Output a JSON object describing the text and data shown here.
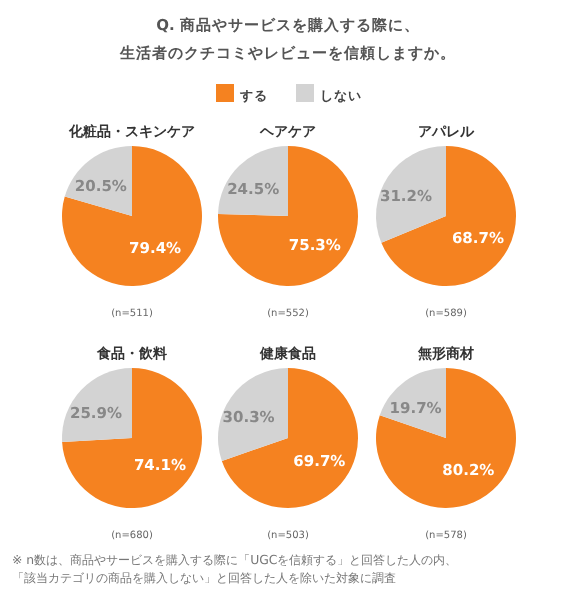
{
  "chart_data": [
    {
      "type": "pie",
      "title": "化粧品・スキンケア",
      "categories": [
        "する",
        "しない"
      ],
      "values": [
        79.4,
        20.5
      ],
      "colors": [
        "#f58220",
        "#d3d3d3"
      ],
      "value_labels": [
        "79.4%",
        "20.5%"
      ],
      "legend": "top",
      "annotations": [
        "Q. 商品やサービスを購入する際に、",
        "生活者のクチコミやレビューを信頼しますか。",
        "(n=511)"
      ]
    },
    {
      "type": "pie",
      "title": "ヘアケア",
      "values": [
        75.3,
        24.5
      ],
      "colors": [
        "#f58220",
        "#d3d3d3"
      ],
      "value_labels": [
        "75.3%",
        "24.5%"
      ],
      "annotations": [
        "(n=552)"
      ]
    },
    {
      "type": "pie",
      "title": "アパレル",
      "values": [
        68.7,
        31.2
      ],
      "colors": [
        "#f58220",
        "#d3d3d3"
      ],
      "value_labels": [
        "68.7%",
        "31.2%"
      ],
      "annotations": [
        "(n=589)"
      ]
    },
    {
      "type": "pie",
      "title": "食品・飲料",
      "values": [
        74.1,
        25.9
      ],
      "colors": [
        "#f58220",
        "#d3d3d3"
      ],
      "value_labels": [
        "74.1%",
        "25.9%"
      ],
      "annotations": [
        "(n=680)"
      ]
    },
    {
      "type": "pie",
      "title": "健康食品",
      "values": [
        69.7,
        30.3
      ],
      "colors": [
        "#f58220",
        "#d3d3d3"
      ],
      "value_labels": [
        "69.7%",
        "30.3%"
      ],
      "annotations": [
        "(n=503)"
      ]
    },
    {
      "type": "pie",
      "title": "無形商材",
      "values": [
        80.2,
        19.7
      ],
      "colors": [
        "#f58220",
        "#d3d3d3"
      ],
      "value_labels": [
        "80.2%",
        "19.7%"
      ],
      "annotations": [
        "(n=578)",
        "※ n数は、商品やサービスを購入する際に「UGCを信頼する」と回答した人の内、",
        "「該当カテゴリの商品を購入しない」と回答した人を除いた対象に調査"
      ]
    }
  ]
}
